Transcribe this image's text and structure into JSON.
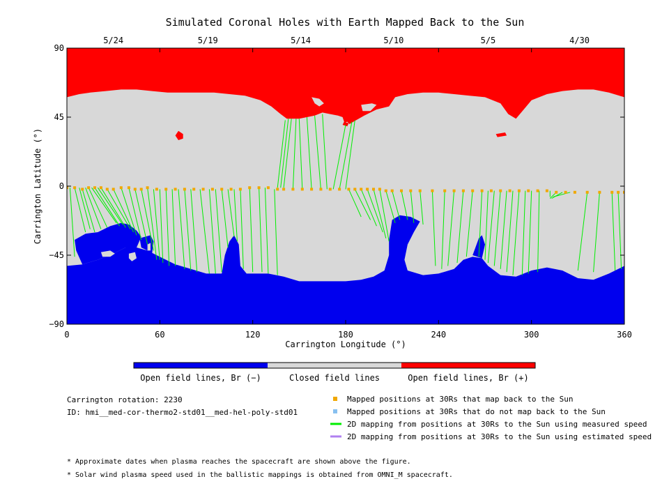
{
  "chart_data": {
    "type": "map",
    "title": "Simulated Coronal Holes with Earth Mapped Back to the Sun",
    "xlabel": "Carrington Longitude (°)",
    "ylabel": "Carrington Latitude (°)",
    "xlim": [
      0,
      360
    ],
    "ylim": [
      -90,
      90
    ],
    "x_ticks": [
      "0",
      "60",
      "120",
      "180",
      "240",
      "300",
      "360"
    ],
    "y_ticks": [
      "90",
      "45",
      "0",
      "−45",
      "−90"
    ],
    "x_tick_values": [
      0,
      60,
      120,
      180,
      240,
      300,
      360
    ],
    "y_tick_values": [
      90,
      45,
      0,
      -45,
      -90
    ],
    "top_dates": [
      {
        "label": "5/24",
        "lon": 30
      },
      {
        "label": "5/19",
        "lon": 91
      },
      {
        "label": "5/14",
        "lon": 151
      },
      {
        "label": "5/10",
        "lon": 211
      },
      {
        "label": "5/5",
        "lon": 272
      },
      {
        "label": "4/30",
        "lon": 331
      }
    ],
    "colors": {
      "open_negative": "#0000ee",
      "closed": "#d8d8d8",
      "open_positive": "#ff0000",
      "mapped_point": "#f0a800",
      "unmapped_point": "#88c0f0",
      "measured_line": "#00ee00",
      "estimated_line": "#b080f0"
    },
    "colorbar": [
      {
        "label": "Open field lines, Br (−)",
        "color": "#0000ee"
      },
      {
        "label": "Closed field lines",
        "color": "#d8d8d8"
      },
      {
        "label": "Open field lines, Br (+)",
        "color": "#ff0000"
      }
    ],
    "north_boundary": [
      [
        0,
        58
      ],
      [
        8,
        60
      ],
      [
        15,
        61
      ],
      [
        25,
        62
      ],
      [
        35,
        63
      ],
      [
        45,
        63
      ],
      [
        55,
        62
      ],
      [
        65,
        61
      ],
      [
        75,
        61
      ],
      [
        85,
        61
      ],
      [
        95,
        61
      ],
      [
        105,
        60
      ],
      [
        115,
        59
      ],
      [
        125,
        56
      ],
      [
        132,
        52
      ],
      [
        138,
        47
      ],
      [
        142,
        44
      ],
      [
        150,
        44
      ],
      [
        155,
        45
      ],
      [
        160,
        46
      ],
      [
        165,
        48
      ],
      [
        170,
        47
      ],
      [
        175,
        46
      ],
      [
        178,
        45
      ],
      [
        180,
        39
      ],
      [
        185,
        42
      ],
      [
        192,
        46
      ],
      [
        200,
        50
      ],
      [
        208,
        52
      ],
      [
        212,
        58
      ],
      [
        220,
        60
      ],
      [
        230,
        61
      ],
      [
        240,
        61
      ],
      [
        250,
        60
      ],
      [
        260,
        59
      ],
      [
        270,
        58
      ],
      [
        280,
        54
      ],
      [
        285,
        47
      ],
      [
        290,
        44
      ],
      [
        295,
        50
      ],
      [
        300,
        56
      ],
      [
        310,
        60
      ],
      [
        320,
        62
      ],
      [
        330,
        63
      ],
      [
        340,
        63
      ],
      [
        350,
        61
      ],
      [
        360,
        58
      ]
    ],
    "south_boundary": [
      [
        0,
        -52
      ],
      [
        10,
        -51
      ],
      [
        20,
        -48
      ],
      [
        30,
        -44
      ],
      [
        38,
        -40
      ],
      [
        45,
        -40
      ],
      [
        52,
        -42
      ],
      [
        60,
        -46
      ],
      [
        70,
        -51
      ],
      [
        80,
        -54
      ],
      [
        90,
        -57
      ],
      [
        100,
        -57
      ],
      [
        102,
        -45
      ],
      [
        105,
        -36
      ],
      [
        108,
        -32
      ],
      [
        111,
        -38
      ],
      [
        112,
        -52
      ],
      [
        116,
        -57
      ],
      [
        130,
        -57
      ],
      [
        140,
        -59
      ],
      [
        150,
        -62
      ],
      [
        160,
        -62
      ],
      [
        170,
        -62
      ],
      [
        180,
        -62
      ],
      [
        190,
        -61
      ],
      [
        198,
        -59
      ],
      [
        205,
        -55
      ],
      [
        208,
        -45
      ],
      [
        208,
        -35
      ],
      [
        210,
        -22
      ],
      [
        215,
        -19
      ],
      [
        222,
        -20
      ],
      [
        228,
        -23
      ],
      [
        224,
        -30
      ],
      [
        220,
        -38
      ],
      [
        218,
        -48
      ],
      [
        220,
        -55
      ],
      [
        230,
        -58
      ],
      [
        240,
        -57
      ],
      [
        250,
        -54
      ],
      [
        256,
        -48
      ],
      [
        262,
        -46
      ],
      [
        268,
        -47
      ],
      [
        272,
        -52
      ],
      [
        280,
        -58
      ],
      [
        290,
        -59
      ],
      [
        300,
        -55
      ],
      [
        310,
        -53
      ],
      [
        320,
        -55
      ],
      [
        330,
        -60
      ],
      [
        340,
        -61
      ],
      [
        350,
        -57
      ],
      [
        360,
        -52
      ]
    ],
    "north_islands": [
      [
        [
          70,
          37
        ],
        [
          74,
          35
        ],
        [
          74,
          30
        ],
        [
          72,
          28
        ],
        [
          70,
          31
        ]
      ],
      [
        [
          158,
          58
        ],
        [
          163,
          57
        ],
        [
          166,
          54
        ],
        [
          163,
          52
        ],
        [
          160,
          54
        ]
      ],
      [
        [
          177,
          38
        ],
        [
          180,
          37
        ],
        [
          183,
          40
        ],
        [
          181,
          42
        ],
        [
          178,
          41
        ]
      ],
      [
        [
          276,
          34
        ],
        [
          282,
          34
        ],
        [
          283,
          33
        ],
        [
          277,
          32
        ]
      ],
      [
        [
          190,
          53
        ],
        [
          197,
          54
        ],
        [
          200,
          53
        ],
        [
          196,
          49
        ],
        [
          191,
          49
        ]
      ]
    ],
    "south_islands": [
      [
        [
          22,
          -43
        ],
        [
          28,
          -42
        ],
        [
          31,
          -44
        ],
        [
          28,
          -46
        ],
        [
          23,
          -46
        ]
      ],
      [
        [
          40,
          -44
        ],
        [
          44,
          -43
        ],
        [
          45,
          -47
        ],
        [
          42,
          -49
        ],
        [
          40,
          -47
        ]
      ],
      [
        [
          52,
          -38
        ],
        [
          54,
          -37
        ],
        [
          54,
          -42
        ],
        [
          52,
          -42
        ]
      ]
    ],
    "south_extra_blobs": [
      [
        [
          5,
          -35
        ],
        [
          12,
          -31
        ],
        [
          20,
          -30
        ],
        [
          28,
          -26
        ],
        [
          35,
          -24
        ],
        [
          40,
          -25
        ],
        [
          45,
          -29
        ],
        [
          48,
          -33
        ],
        [
          45,
          -40
        ],
        [
          38,
          -40
        ],
        [
          30,
          -44
        ],
        [
          20,
          -48
        ],
        [
          10,
          -51
        ],
        [
          6,
          -42
        ]
      ],
      [
        [
          47,
          -34
        ],
        [
          54,
          -32
        ],
        [
          56,
          -36
        ],
        [
          55,
          -44
        ],
        [
          52,
          -42
        ],
        [
          48,
          -40
        ]
      ],
      [
        [
          262,
          -45
        ],
        [
          266,
          -34
        ],
        [
          268,
          -32
        ],
        [
          270,
          -38
        ],
        [
          268,
          -47
        ]
      ]
    ],
    "mapped_points": [
      [
        0,
        -1
      ],
      [
        5,
        -1
      ],
      [
        10,
        -2
      ],
      [
        14,
        -1
      ],
      [
        18,
        -1
      ],
      [
        22,
        -1
      ],
      [
        26,
        -2
      ],
      [
        30,
        -2
      ],
      [
        35,
        -1
      ],
      [
        40,
        -1
      ],
      [
        44,
        -2
      ],
      [
        48,
        -2
      ],
      [
        52,
        -1
      ],
      [
        58,
        -2
      ],
      [
        64,
        -2
      ],
      [
        70,
        -2
      ],
      [
        76,
        -2
      ],
      [
        82,
        -2
      ],
      [
        88,
        -2
      ],
      [
        94,
        -2
      ],
      [
        100,
        -2
      ],
      [
        106,
        -2
      ],
      [
        112,
        -2
      ],
      [
        118,
        -1
      ],
      [
        124,
        -1
      ],
      [
        130,
        -1
      ],
      [
        136,
        -2
      ],
      [
        140,
        -2
      ],
      [
        146,
        -2
      ],
      [
        152,
        -2
      ],
      [
        158,
        -2
      ],
      [
        164,
        -2
      ],
      [
        170,
        -2
      ],
      [
        176,
        -2
      ],
      [
        182,
        -2
      ],
      [
        186,
        -2
      ],
      [
        190,
        -2
      ],
      [
        194,
        -2
      ],
      [
        198,
        -2
      ],
      [
        202,
        -2
      ],
      [
        206,
        -3
      ],
      [
        210,
        -3
      ],
      [
        216,
        -3
      ],
      [
        222,
        -3
      ],
      [
        228,
        -3
      ],
      [
        236,
        -3
      ],
      [
        244,
        -3
      ],
      [
        250,
        -3
      ],
      [
        256,
        -3
      ],
      [
        262,
        -3
      ],
      [
        268,
        -3
      ],
      [
        274,
        -3
      ],
      [
        280,
        -3
      ],
      [
        286,
        -3
      ],
      [
        292,
        -3
      ],
      [
        298,
        -3
      ],
      [
        304,
        -3
      ],
      [
        310,
        -3
      ],
      [
        316,
        -4
      ],
      [
        322,
        -4
      ],
      [
        328,
        -4
      ],
      [
        336,
        -4
      ],
      [
        344,
        -4
      ],
      [
        352,
        -4
      ],
      [
        356,
        -4
      ],
      [
        360,
        -4
      ]
    ],
    "mapping_lines": [
      [
        0,
        -1,
        0,
        -40
      ],
      [
        2,
        -1,
        5,
        -46
      ],
      [
        5,
        -1,
        12,
        -30
      ],
      [
        8,
        -1,
        15,
        -28
      ],
      [
        10,
        -2,
        18,
        -30
      ],
      [
        12,
        -1,
        22,
        -28
      ],
      [
        14,
        -1,
        26,
        -27
      ],
      [
        16,
        -1,
        32,
        -24
      ],
      [
        18,
        -1,
        34,
        -26
      ],
      [
        20,
        -1,
        36,
        -25
      ],
      [
        22,
        -1,
        38,
        -27
      ],
      [
        26,
        -2,
        41,
        -28
      ],
      [
        30,
        -2,
        43,
        -30
      ],
      [
        35,
        -1,
        45,
        -32
      ],
      [
        40,
        -1,
        48,
        -35
      ],
      [
        44,
        -2,
        52,
        -38
      ],
      [
        48,
        -2,
        56,
        -42
      ],
      [
        52,
        -1,
        58,
        -48
      ],
      [
        56,
        -2,
        60,
        -48
      ],
      [
        60,
        -2,
        62,
        -50
      ],
      [
        64,
        -2,
        66,
        -52
      ],
      [
        68,
        -2,
        70,
        -52
      ],
      [
        72,
        -2,
        76,
        -54
      ],
      [
        76,
        -2,
        80,
        -55
      ],
      [
        80,
        -2,
        84,
        -56
      ],
      [
        86,
        -2,
        92,
        -57
      ],
      [
        92,
        -2,
        96,
        -57
      ],
      [
        96,
        -2,
        100,
        -56
      ],
      [
        100,
        -2,
        104,
        -40
      ],
      [
        104,
        -2,
        108,
        -33
      ],
      [
        108,
        -2,
        110,
        -36
      ],
      [
        112,
        -2,
        114,
        -54
      ],
      [
        118,
        -1,
        120,
        -56
      ],
      [
        124,
        -1,
        126,
        -56
      ],
      [
        128,
        -1,
        130,
        -57
      ],
      [
        134,
        -2,
        136,
        -58
      ],
      [
        136,
        -1,
        141,
        43
      ],
      [
        138,
        -1,
        143,
        44
      ],
      [
        140,
        -1,
        145,
        44
      ],
      [
        146,
        -2,
        148,
        44
      ],
      [
        152,
        -2,
        150,
        44
      ],
      [
        158,
        -2,
        155,
        45
      ],
      [
        164,
        -2,
        160,
        46
      ],
      [
        168,
        -2,
        165,
        47
      ],
      [
        172,
        -2,
        180,
        40
      ],
      [
        176,
        -2,
        184,
        42
      ],
      [
        180,
        -2,
        186,
        43
      ],
      [
        182,
        -2,
        190,
        -20
      ],
      [
        186,
        -2,
        196,
        -22
      ],
      [
        190,
        -2,
        200,
        -26
      ],
      [
        194,
        -2,
        204,
        -30
      ],
      [
        198,
        -2,
        206,
        -34
      ],
      [
        202,
        -2,
        208,
        -36
      ],
      [
        206,
        -3,
        212,
        -24
      ],
      [
        210,
        -3,
        215,
        -22
      ],
      [
        216,
        -3,
        220,
        -22
      ],
      [
        222,
        -3,
        224,
        -24
      ],
      [
        228,
        -3,
        230,
        -25
      ],
      [
        236,
        -3,
        238,
        -52
      ],
      [
        244,
        -3,
        242,
        -54
      ],
      [
        250,
        -3,
        246,
        -52
      ],
      [
        256,
        -3,
        252,
        -50
      ],
      [
        262,
        -3,
        258,
        -46
      ],
      [
        268,
        -3,
        266,
        -46
      ],
      [
        272,
        -3,
        270,
        -48
      ],
      [
        276,
        -3,
        272,
        -50
      ],
      [
        280,
        -3,
        276,
        -52
      ],
      [
        284,
        -3,
        280,
        -54
      ],
      [
        288,
        -3,
        284,
        -56
      ],
      [
        292,
        -3,
        288,
        -58
      ],
      [
        296,
        -3,
        294,
        -58
      ],
      [
        300,
        -3,
        298,
        -57
      ],
      [
        305,
        -3,
        304,
        -56
      ],
      [
        312,
        -3,
        312,
        -7
      ],
      [
        316,
        -4,
        312,
        -8
      ],
      [
        320,
        -4,
        313,
        -8
      ],
      [
        325,
        -4,
        314,
        -7
      ],
      [
        336,
        -4,
        330,
        -55
      ],
      [
        344,
        -4,
        340,
        -56
      ],
      [
        352,
        -4,
        354,
        -55
      ],
      [
        356,
        -4,
        358,
        -54
      ],
      [
        360,
        -4,
        360,
        -53
      ]
    ],
    "legend_entries": [
      {
        "label": "Mapped positions at 30Rs that map back to the Sun",
        "type": "square",
        "color": "#f0a800"
      },
      {
        "label": "Mapped positions at 30Rs that do not map back to the Sun",
        "type": "square",
        "color": "#88c0f0"
      },
      {
        "label": "2D mapping from positions at 30Rs to the Sun using measured speed",
        "type": "line",
        "color": "#00ee00"
      },
      {
        "label": "2D mapping from positions at 30Rs to the Sun using estimated speed",
        "type": "line",
        "color": "#b080f0"
      }
    ],
    "info": {
      "carrington_rotation": "Carrington rotation: 2230",
      "model_id": "ID: hmi__med-cor-thermo2-std01__med-hel-poly-std01"
    },
    "footnotes": [
      "* Approximate dates when plasma reaches the spacecraft are shown above the figure.",
      "* Solar wind plasma speed used in the ballistic mappings is obtained from OMNI_M spacecraft."
    ]
  }
}
